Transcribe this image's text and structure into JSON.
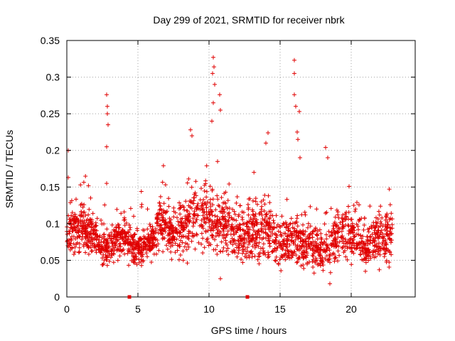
{
  "chart_data": {
    "type": "scatter",
    "title": "Day 299 of 2021, SRMTID for receiver nbrk",
    "xlabel": "GPS time / hours",
    "ylabel": "SRMTID / TECUs",
    "xlim": [
      0,
      24.5
    ],
    "ylim": [
      0,
      0.35
    ],
    "xticks": [
      0,
      5,
      10,
      15,
      20
    ],
    "xtick_labels": [
      "0",
      "5",
      "10",
      "15",
      "20"
    ],
    "yticks": [
      0,
      0.05,
      0.1,
      0.15,
      0.2,
      0.25,
      0.3,
      0.35
    ],
    "ytick_labels": [
      "0",
      "0.05",
      "0.1",
      "0.15",
      "0.2",
      "0.25",
      "0.3",
      "0.35"
    ],
    "grid": true,
    "marker": "plus",
    "color": "#e00000",
    "gap_markers_x": [
      4.4,
      12.7
    ],
    "series": [
      {
        "name": "SRMTID",
        "baseline_hours": [
          0,
          0.5,
          1,
          1.5,
          2,
          2.5,
          3,
          3.5,
          4,
          4.5,
          5,
          5.5,
          6,
          6.5,
          7,
          7.5,
          8,
          8.5,
          9,
          9.5,
          10,
          10.5,
          11,
          11.5,
          12,
          12.5,
          13,
          13.5,
          14,
          14.5,
          15,
          15.5,
          16,
          16.5,
          17,
          17.5,
          18,
          18.5,
          19,
          19.5,
          20,
          20.5,
          21,
          21.5,
          22,
          22.5,
          23
        ],
        "baseline_median": [
          0.085,
          0.09,
          0.095,
          0.09,
          0.085,
          0.06,
          0.07,
          0.075,
          0.085,
          0.07,
          0.065,
          0.07,
          0.075,
          0.1,
          0.09,
          0.085,
          0.09,
          0.1,
          0.11,
          0.115,
          0.11,
          0.095,
          0.1,
          0.095,
          0.085,
          0.08,
          0.09,
          0.085,
          0.09,
          0.08,
          0.07,
          0.075,
          0.08,
          0.075,
          0.07,
          0.065,
          0.06,
          0.07,
          0.08,
          0.095,
          0.085,
          0.075,
          0.065,
          0.075,
          0.08,
          0.085,
          0.08
        ],
        "baseline_spread": [
          0.04,
          0.045,
          0.05,
          0.045,
          0.04,
          0.03,
          0.035,
          0.035,
          0.04,
          0.035,
          0.03,
          0.035,
          0.035,
          0.045,
          0.045,
          0.04,
          0.05,
          0.06,
          0.06,
          0.06,
          0.065,
          0.055,
          0.055,
          0.055,
          0.05,
          0.045,
          0.06,
          0.06,
          0.06,
          0.05,
          0.045,
          0.045,
          0.05,
          0.045,
          0.045,
          0.04,
          0.04,
          0.045,
          0.05,
          0.06,
          0.05,
          0.045,
          0.04,
          0.045,
          0.05,
          0.05,
          0.045
        ],
        "peaks": [
          {
            "x": 0.1,
            "y": 0.2
          },
          {
            "x": 0.1,
            "y": 0.163
          },
          {
            "x": 2.8,
            "y": 0.276
          },
          {
            "x": 2.85,
            "y": 0.26
          },
          {
            "x": 2.85,
            "y": 0.25
          },
          {
            "x": 2.9,
            "y": 0.235
          },
          {
            "x": 2.8,
            "y": 0.205
          },
          {
            "x": 2.8,
            "y": 0.155
          },
          {
            "x": 8.7,
            "y": 0.228
          },
          {
            "x": 8.8,
            "y": 0.22
          },
          {
            "x": 10.3,
            "y": 0.327
          },
          {
            "x": 10.35,
            "y": 0.314
          },
          {
            "x": 10.25,
            "y": 0.305
          },
          {
            "x": 10.4,
            "y": 0.29
          },
          {
            "x": 10.3,
            "y": 0.265
          },
          {
            "x": 10.2,
            "y": 0.24
          },
          {
            "x": 10.75,
            "y": 0.276
          },
          {
            "x": 10.8,
            "y": 0.255
          },
          {
            "x": 10.6,
            "y": 0.185
          },
          {
            "x": 14.15,
            "y": 0.224
          },
          {
            "x": 14.0,
            "y": 0.21
          },
          {
            "x": 16.0,
            "y": 0.323
          },
          {
            "x": 16.0,
            "y": 0.305
          },
          {
            "x": 16.0,
            "y": 0.276
          },
          {
            "x": 16.1,
            "y": 0.26
          },
          {
            "x": 16.35,
            "y": 0.253
          },
          {
            "x": 16.2,
            "y": 0.225
          },
          {
            "x": 16.25,
            "y": 0.215
          },
          {
            "x": 16.4,
            "y": 0.19
          },
          {
            "x": 18.2,
            "y": 0.204
          },
          {
            "x": 18.35,
            "y": 0.19
          },
          {
            "x": 18.5,
            "y": 0.018
          },
          {
            "x": 10.8,
            "y": 0.025
          },
          {
            "x": 21.0,
            "y": 0.035
          }
        ]
      }
    ]
  }
}
